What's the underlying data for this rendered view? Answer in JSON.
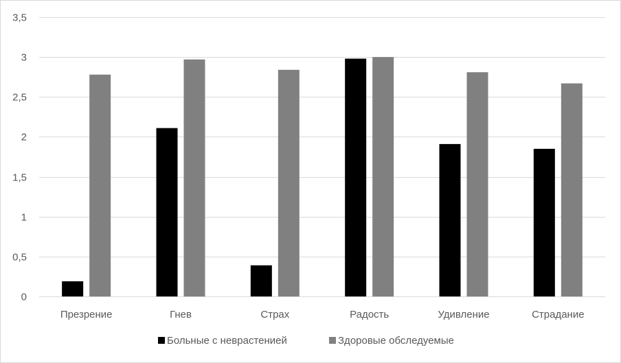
{
  "chart_data": {
    "type": "bar",
    "categories": [
      "Презрение",
      "Гнев",
      "Страх",
      "Радость",
      "Удивление",
      "Страдание"
    ],
    "series": [
      {
        "name": "Больные с неврастенией",
        "color": "#000000",
        "values": [
          0.19,
          2.11,
          0.39,
          2.98,
          1.91,
          1.85
        ]
      },
      {
        "name": "Здоровые обследуемые",
        "color": "#808080",
        "values": [
          2.78,
          2.97,
          2.84,
          3.0,
          2.81,
          2.67
        ]
      }
    ],
    "y_ticks": [
      {
        "value": 0,
        "label": "0"
      },
      {
        "value": 0.5,
        "label": "0,5"
      },
      {
        "value": 1,
        "label": "1"
      },
      {
        "value": 1.5,
        "label": "1,5"
      },
      {
        "value": 2,
        "label": "2"
      },
      {
        "value": 2.5,
        "label": "2,5"
      },
      {
        "value": 3,
        "label": "3"
      },
      {
        "value": 3.5,
        "label": "3,5"
      }
    ],
    "ylim": [
      0,
      3.5
    ],
    "grid": true,
    "gridline_color": "#d9d9d9",
    "legend_position": "bottom",
    "title": "",
    "xlabel": "",
    "ylabel": ""
  }
}
